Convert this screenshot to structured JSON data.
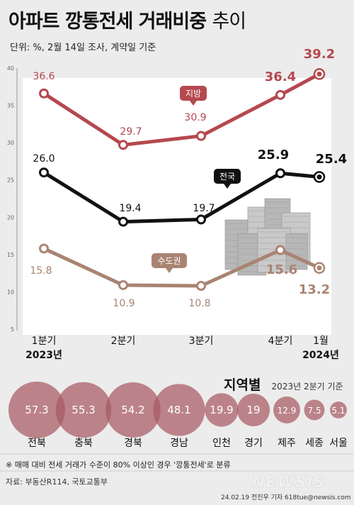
{
  "title_bold": "아파트 깡통전세 거래비중",
  "title_light": "추이",
  "subtitle": "단위: %, 2월 14일 조사, 계약일 기준",
  "chart_data": [
    {
      "type": "line",
      "x": [
        "1분기",
        "2분기",
        "3분기",
        "4분기",
        "1월"
      ],
      "x_years": [
        "2023년",
        "",
        "",
        "",
        "2024년"
      ],
      "ylim": [
        5,
        40
      ],
      "yticks": [
        5,
        10,
        15,
        20,
        25,
        30,
        35,
        40
      ],
      "grid": false,
      "series": [
        {
          "name": "지방",
          "values": [
            36.6,
            29.7,
            30.9,
            36.4,
            39.2
          ],
          "color": "#b5484f"
        },
        {
          "name": "전국",
          "values": [
            26.0,
            19.4,
            19.7,
            25.9,
            25.4
          ],
          "color": "#111111"
        },
        {
          "name": "수도권",
          "values": [
            15.8,
            10.9,
            10.8,
            15.6,
            13.2
          ],
          "color": "#a98472"
        }
      ],
      "value_labels": {
        "지방": [
          "36.6",
          "29.7",
          "30.9",
          "36.4",
          "39.2"
        ],
        "전국": [
          "26.0",
          "19.4",
          "19.7",
          "25.9",
          "25.4"
        ],
        "수도권": [
          "15.8",
          "10.9",
          "10.8",
          "15.6",
          "13.2"
        ]
      }
    },
    {
      "type": "bubble",
      "title": "지역별",
      "subtitle": "2023년 2분기 기준",
      "categories": [
        "전북",
        "충북",
        "경북",
        "경남",
        "인천",
        "경기",
        "제주",
        "세종",
        "서울"
      ],
      "values": [
        57.3,
        55.3,
        54.2,
        48.1,
        19.9,
        19,
        12.9,
        7.5,
        5.1
      ],
      "labels": [
        "57.3",
        "55.3",
        "54.2",
        "48.1",
        "19.9",
        "19",
        "12.9",
        "7.5",
        "5.1"
      ],
      "color": "#a85a63"
    }
  ],
  "note": "※ 매매 대비 전세 거래가 수준이 80% 이상인 경우 '깡통전세'로 분류",
  "source": "자료: 부동산R114, 국토교통부",
  "credit": "24.02.19 전진우 기자 618tue@newsis.com",
  "watermark": "NEWSIS"
}
